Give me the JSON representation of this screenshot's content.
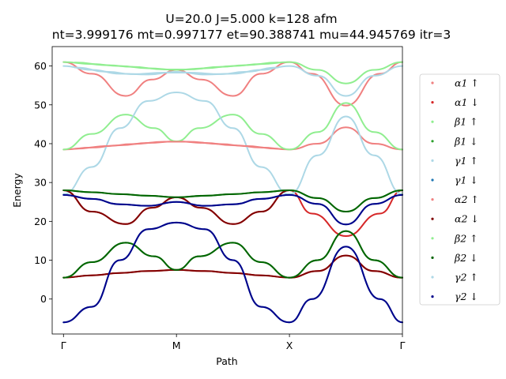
{
  "chart_data": {
    "type": "scatter",
    "title_line1": "U=20.0 J=5.000 k=128 afm",
    "title_line2": "nt=3.999176 mt=0.997177 et=90.388741 mu=44.945769 itr=3",
    "xlabel": "Path",
    "ylabel": "Energy",
    "x_ticks": [
      "Γ",
      "M",
      "X",
      "Γ"
    ],
    "x_tick_positions": [
      0,
      1,
      2,
      3
    ],
    "xlim": [
      -0.1,
      3.0
    ],
    "ylim": [
      -9,
      65
    ],
    "y_ticks": [
      0,
      10,
      20,
      30,
      40,
      50,
      60
    ],
    "grid": false,
    "legend_position": "right",
    "series": [
      {
        "name": "α1 ↑",
        "color": "#f08080",
        "points": [
          [
            0,
            38.5
          ],
          [
            0.25,
            39
          ],
          [
            0.5,
            39.6
          ],
          [
            0.75,
            40.2
          ],
          [
            1,
            40.6
          ],
          [
            1.25,
            40.2
          ],
          [
            1.5,
            39.6
          ],
          [
            1.75,
            39
          ],
          [
            2,
            38.5
          ],
          [
            2.25,
            40
          ],
          [
            2.5,
            44.2
          ],
          [
            2.75,
            40
          ],
          [
            3,
            38.5
          ],
          [
            0,
            61
          ],
          [
            0.25,
            58
          ],
          [
            0.55,
            52.3
          ],
          [
            0.78,
            56.5
          ],
          [
            1,
            59
          ],
          [
            1.22,
            56.5
          ],
          [
            1.5,
            52.3
          ],
          [
            1.75,
            58
          ],
          [
            2,
            61
          ],
          [
            2.2,
            58
          ],
          [
            2.5,
            49.8
          ],
          [
            2.8,
            58
          ],
          [
            3,
            61
          ]
        ]
      },
      {
        "name": "α1 ↓",
        "color": "#d62728",
        "points": [
          [
            0,
            5.5
          ],
          [
            0.25,
            6.1
          ],
          [
            0.5,
            6.7
          ],
          [
            0.75,
            7.2
          ],
          [
            1,
            7.5
          ],
          [
            1.25,
            7.2
          ],
          [
            1.5,
            6.7
          ],
          [
            1.75,
            6.1
          ],
          [
            2,
            5.5
          ],
          [
            2.25,
            7.2
          ],
          [
            2.5,
            11.2
          ],
          [
            2.75,
            7.2
          ],
          [
            3,
            5.5
          ],
          [
            0,
            28
          ],
          [
            0.25,
            22.5
          ],
          [
            0.55,
            19.3
          ],
          [
            0.78,
            23.5
          ],
          [
            1,
            26.2
          ],
          [
            1.22,
            23.5
          ],
          [
            1.5,
            19.3
          ],
          [
            1.75,
            22.5
          ],
          [
            2,
            28
          ],
          [
            2.2,
            22
          ],
          [
            2.5,
            16.2
          ],
          [
            2.8,
            22
          ],
          [
            3,
            28
          ]
        ]
      },
      {
        "name": "β1 ↑",
        "color": "#90ee90",
        "points": [
          [
            0,
            38.5
          ],
          [
            0.25,
            42.5
          ],
          [
            0.55,
            47.5
          ],
          [
            0.8,
            44
          ],
          [
            1,
            40.6
          ],
          [
            1.2,
            44
          ],
          [
            1.5,
            47.5
          ],
          [
            1.75,
            42.5
          ],
          [
            2,
            38.5
          ],
          [
            2.25,
            43
          ],
          [
            2.5,
            50.5
          ],
          [
            2.75,
            43
          ],
          [
            3,
            38.5
          ],
          [
            0,
            61
          ],
          [
            0.25,
            60.5
          ],
          [
            0.5,
            60
          ],
          [
            0.75,
            59.4
          ],
          [
            1,
            59
          ],
          [
            1.25,
            59.4
          ],
          [
            1.5,
            60
          ],
          [
            1.75,
            60.5
          ],
          [
            2,
            61
          ],
          [
            2.25,
            59
          ],
          [
            2.5,
            55.5
          ],
          [
            2.75,
            59
          ],
          [
            3,
            61
          ]
        ]
      },
      {
        "name": "β1 ↓",
        "color": "#2ca02c",
        "points": [
          [
            0,
            5.5
          ],
          [
            0.25,
            9.5
          ],
          [
            0.55,
            14.5
          ],
          [
            0.8,
            11
          ],
          [
            1,
            7.5
          ],
          [
            1.2,
            11
          ],
          [
            1.5,
            14.5
          ],
          [
            1.75,
            9.5
          ],
          [
            2,
            5.5
          ],
          [
            2.25,
            10
          ],
          [
            2.5,
            17.5
          ],
          [
            2.75,
            10
          ],
          [
            3,
            5.5
          ],
          [
            0,
            28
          ],
          [
            0.25,
            27.5
          ],
          [
            0.5,
            27
          ],
          [
            0.75,
            26.6
          ],
          [
            1,
            26.2
          ],
          [
            1.25,
            26.6
          ],
          [
            1.5,
            27
          ],
          [
            1.75,
            27.5
          ],
          [
            2,
            28
          ],
          [
            2.25,
            26
          ],
          [
            2.5,
            22.5
          ],
          [
            2.75,
            26
          ],
          [
            3,
            28
          ]
        ]
      },
      {
        "name": "γ1 ↑",
        "color": "#add8e6",
        "points": [
          [
            0,
            27
          ],
          [
            0.25,
            34
          ],
          [
            0.5,
            44
          ],
          [
            0.75,
            51
          ],
          [
            1,
            53.2
          ],
          [
            1.25,
            51
          ],
          [
            1.5,
            44
          ],
          [
            1.75,
            34
          ],
          [
            2,
            27
          ],
          [
            2.25,
            37
          ],
          [
            2.5,
            47
          ],
          [
            2.75,
            37
          ],
          [
            3,
            27
          ],
          [
            0,
            60
          ],
          [
            0.25,
            59
          ],
          [
            0.5,
            58
          ],
          [
            0.75,
            57.8
          ],
          [
            1,
            58.5
          ],
          [
            1.25,
            57.8
          ],
          [
            1.5,
            58
          ],
          [
            1.75,
            59
          ],
          [
            2,
            60
          ],
          [
            2.25,
            57.5
          ],
          [
            2.5,
            52.3
          ],
          [
            2.75,
            57.5
          ],
          [
            3,
            60
          ]
        ]
      },
      {
        "name": "γ1 ↓",
        "color": "#1f77b4",
        "points": [
          [
            0,
            -6
          ],
          [
            0.25,
            -2
          ],
          [
            0.5,
            10
          ],
          [
            0.75,
            18
          ],
          [
            1,
            19.7
          ],
          [
            1.25,
            18
          ],
          [
            1.5,
            10
          ],
          [
            1.75,
            -2
          ],
          [
            2,
            -6
          ],
          [
            2.2,
            0
          ],
          [
            2.5,
            13.5
          ],
          [
            2.8,
            0
          ],
          [
            3,
            -6
          ],
          [
            0,
            26.8
          ],
          [
            0.25,
            25.8
          ],
          [
            0.5,
            24.4
          ],
          [
            0.75,
            24
          ],
          [
            1,
            25
          ],
          [
            1.25,
            24
          ],
          [
            1.5,
            24.4
          ],
          [
            1.75,
            25.8
          ],
          [
            2,
            26.8
          ],
          [
            2.25,
            24.5
          ],
          [
            2.5,
            19.2
          ],
          [
            2.75,
            24.5
          ],
          [
            3,
            26.8
          ]
        ]
      },
      {
        "name": "α2 ↑",
        "color": "#f08080",
        "points": [
          [
            0.1,
            38.7
          ],
          [
            0.4,
            39.4
          ],
          [
            0.6,
            39.9
          ],
          [
            0.9,
            40.5
          ],
          [
            1.1,
            40.5
          ],
          [
            1.4,
            39.9
          ],
          [
            1.6,
            39.4
          ],
          [
            1.9,
            38.7
          ]
        ]
      },
      {
        "name": "α2 ↓",
        "color": "#800000",
        "points": [
          [
            0,
            28
          ],
          [
            0.25,
            22.5
          ],
          [
            0.55,
            19.3
          ],
          [
            0.78,
            23.5
          ],
          [
            1,
            26.2
          ],
          [
            1.22,
            23.5
          ],
          [
            1.5,
            19.3
          ],
          [
            1.75,
            22.5
          ],
          [
            2,
            28
          ],
          [
            0,
            5.5
          ],
          [
            0.25,
            6.1
          ],
          [
            0.5,
            6.7
          ],
          [
            0.75,
            7.2
          ],
          [
            1,
            7.5
          ],
          [
            1.25,
            7.2
          ],
          [
            1.5,
            6.7
          ],
          [
            1.75,
            6.1
          ],
          [
            2,
            5.5
          ],
          [
            2.25,
            7.2
          ],
          [
            2.5,
            11.2
          ],
          [
            2.75,
            7.2
          ],
          [
            3,
            5.5
          ]
        ]
      },
      {
        "name": "β2 ↑",
        "color": "#90ee90",
        "points": [
          [
            0.1,
            60.9
          ],
          [
            0.4,
            60.2
          ],
          [
            0.6,
            59.8
          ],
          [
            0.9,
            59.1
          ],
          [
            1.1,
            59.1
          ],
          [
            1.4,
            59.8
          ],
          [
            1.6,
            60.2
          ],
          [
            1.9,
            60.9
          ]
        ]
      },
      {
        "name": "β2 ↓",
        "color": "#006400",
        "points": [
          [
            0,
            28
          ],
          [
            0.25,
            27.5
          ],
          [
            0.5,
            27
          ],
          [
            0.75,
            26.6
          ],
          [
            1,
            26.2
          ],
          [
            1.25,
            26.6
          ],
          [
            1.5,
            27
          ],
          [
            1.75,
            27.5
          ],
          [
            2,
            28
          ],
          [
            2.25,
            26
          ],
          [
            2.5,
            22.5
          ],
          [
            2.75,
            26
          ],
          [
            3,
            28
          ],
          [
            0,
            5.5
          ],
          [
            0.25,
            9.5
          ],
          [
            0.55,
            14.5
          ],
          [
            0.8,
            11
          ],
          [
            1,
            7.5
          ],
          [
            1.2,
            11
          ],
          [
            1.5,
            14.5
          ],
          [
            1.75,
            9.5
          ],
          [
            2,
            5.5
          ],
          [
            2.25,
            10
          ],
          [
            2.5,
            17.5
          ],
          [
            2.75,
            10
          ],
          [
            3,
            5.5
          ]
        ]
      },
      {
        "name": "γ2 ↑",
        "color": "#add8e6",
        "points": [
          [
            0.1,
            59.6
          ],
          [
            0.4,
            58.5
          ],
          [
            0.6,
            57.9
          ],
          [
            0.9,
            58.3
          ],
          [
            1.1,
            58.3
          ],
          [
            1.4,
            57.9
          ],
          [
            1.6,
            58.5
          ],
          [
            1.9,
            59.6
          ]
        ]
      },
      {
        "name": "γ2 ↓",
        "color": "#00008b",
        "points": [
          [
            0,
            26.8
          ],
          [
            0.25,
            25.8
          ],
          [
            0.5,
            24.4
          ],
          [
            0.75,
            24
          ],
          [
            1,
            25
          ],
          [
            1.25,
            24
          ],
          [
            1.5,
            24.4
          ],
          [
            1.75,
            25.8
          ],
          [
            2,
            26.8
          ],
          [
            2.25,
            24.5
          ],
          [
            2.5,
            19.2
          ],
          [
            2.75,
            24.5
          ],
          [
            3,
            26.8
          ],
          [
            0,
            -6
          ],
          [
            0.25,
            -2
          ],
          [
            0.5,
            10
          ],
          [
            0.75,
            18
          ],
          [
            1,
            19.7
          ],
          [
            1.25,
            18
          ],
          [
            1.5,
            10
          ],
          [
            1.75,
            -2
          ],
          [
            2,
            -6
          ],
          [
            2.2,
            0
          ],
          [
            2.5,
            13.5
          ],
          [
            2.8,
            0
          ],
          [
            3,
            -6
          ]
        ]
      }
    ]
  }
}
